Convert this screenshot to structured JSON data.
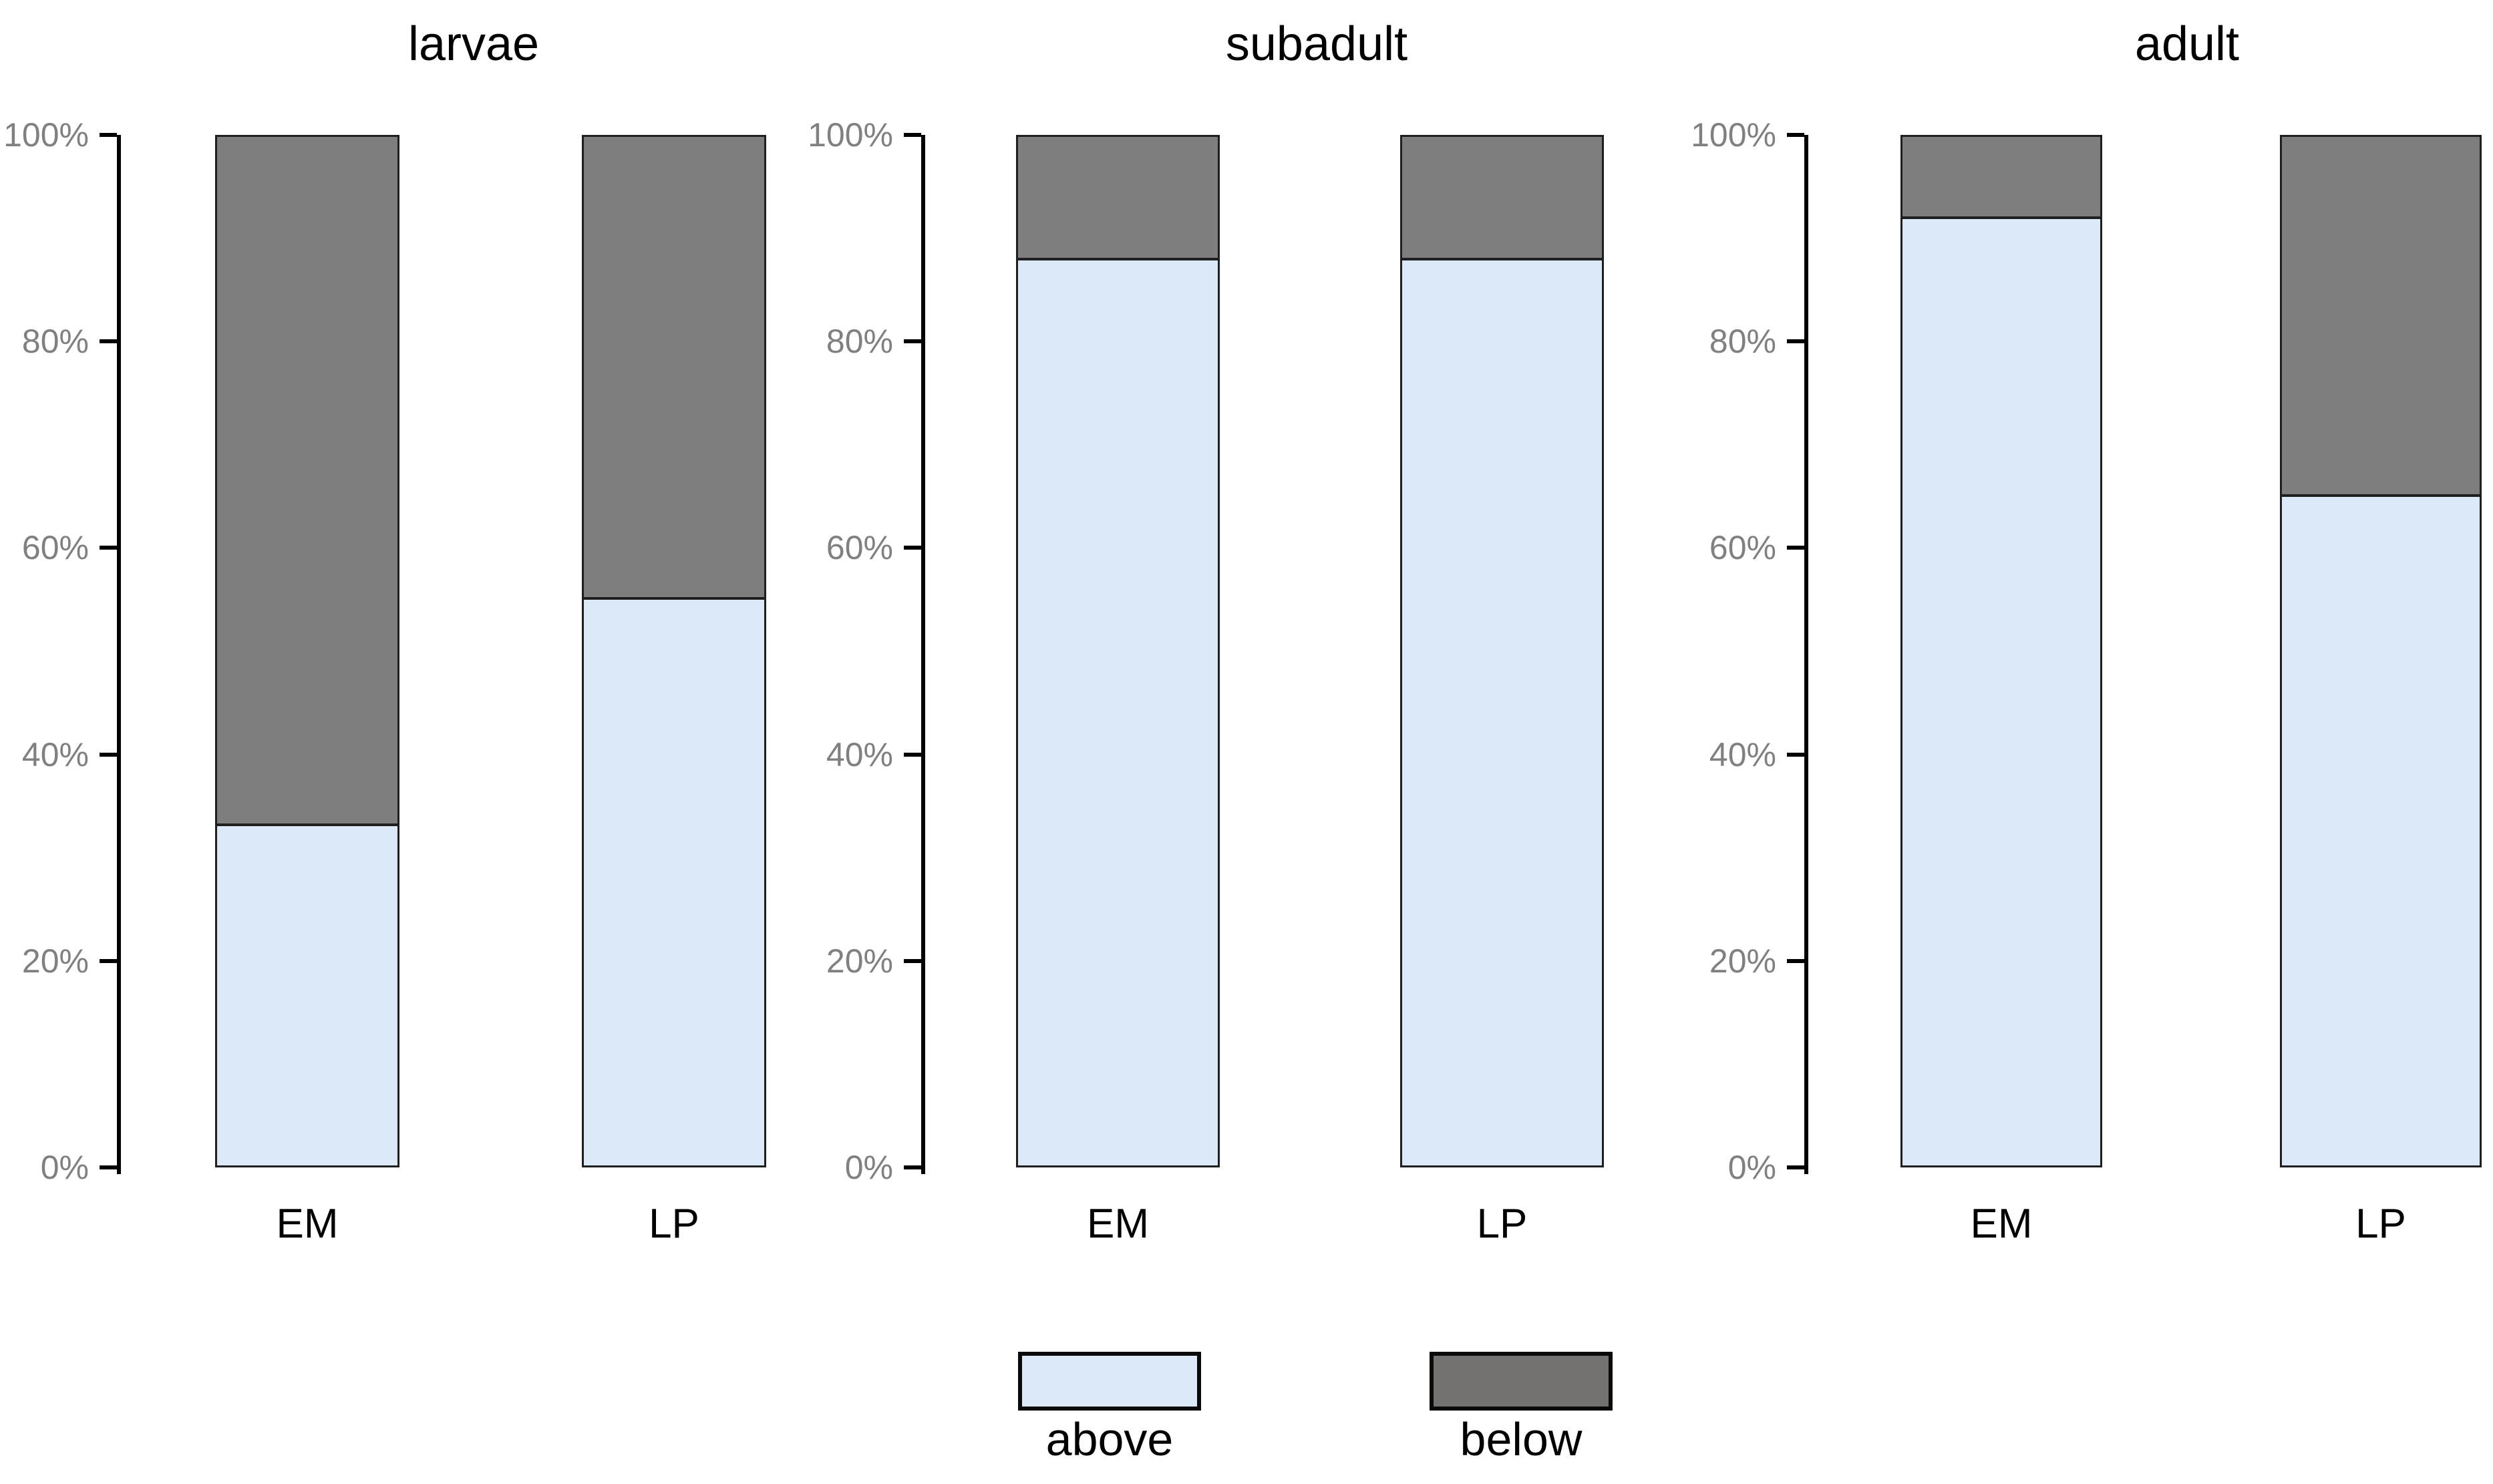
{
  "figure": {
    "background_color": "#ffffff",
    "text_color": "#000000",
    "tick_label_color": "#808080",
    "axis_color": "#000000",
    "bar_border_color": "#1f1f1f"
  },
  "legend": {
    "position": "bottom-center",
    "items": [
      {
        "label": "above",
        "color": "#dbe8f5",
        "border": "#0a0a0a"
      },
      {
        "label": "below",
        "color": "#767171",
        "border": "#0a0a0a"
      }
    ]
  },
  "chart_data": [
    {
      "type": "bar",
      "stacked": true,
      "percent": true,
      "title": "larvae",
      "categories": [
        "EM",
        "LP"
      ],
      "series": [
        {
          "name": "above",
          "color": "#dbe8f5",
          "values": [
            33,
            55
          ]
        },
        {
          "name": "below",
          "color": "#7e7e7e",
          "values": [
            67,
            45
          ]
        }
      ],
      "ylim": [
        0,
        100
      ],
      "yticks": [
        "0%",
        "20%",
        "40%",
        "60%",
        "80%",
        "100%"
      ],
      "grid": false,
      "legend_position": "bottom"
    },
    {
      "type": "bar",
      "stacked": true,
      "percent": true,
      "title": "subadult",
      "categories": [
        "EM",
        "LP"
      ],
      "series": [
        {
          "name": "above",
          "color": "#dbe8f5",
          "values": [
            88,
            88
          ]
        },
        {
          "name": "below",
          "color": "#7e7e7e",
          "values": [
            12,
            12
          ]
        }
      ],
      "ylim": [
        0,
        100
      ],
      "yticks": [
        "0%",
        "20%",
        "40%",
        "60%",
        "80%",
        "100%"
      ],
      "grid": false,
      "legend_position": "bottom"
    },
    {
      "type": "bar",
      "stacked": true,
      "percent": true,
      "title": "adult",
      "categories": [
        "EM",
        "LP"
      ],
      "series": [
        {
          "name": "above",
          "color": "#dbe8f5",
          "values": [
            92,
            65
          ]
        },
        {
          "name": "below",
          "color": "#7e7e7e",
          "values": [
            8,
            35
          ]
        }
      ],
      "ylim": [
        0,
        100
      ],
      "yticks": [
        "0%",
        "20%",
        "40%",
        "60%",
        "80%",
        "100%"
      ],
      "grid": false,
      "legend_position": "bottom"
    }
  ]
}
